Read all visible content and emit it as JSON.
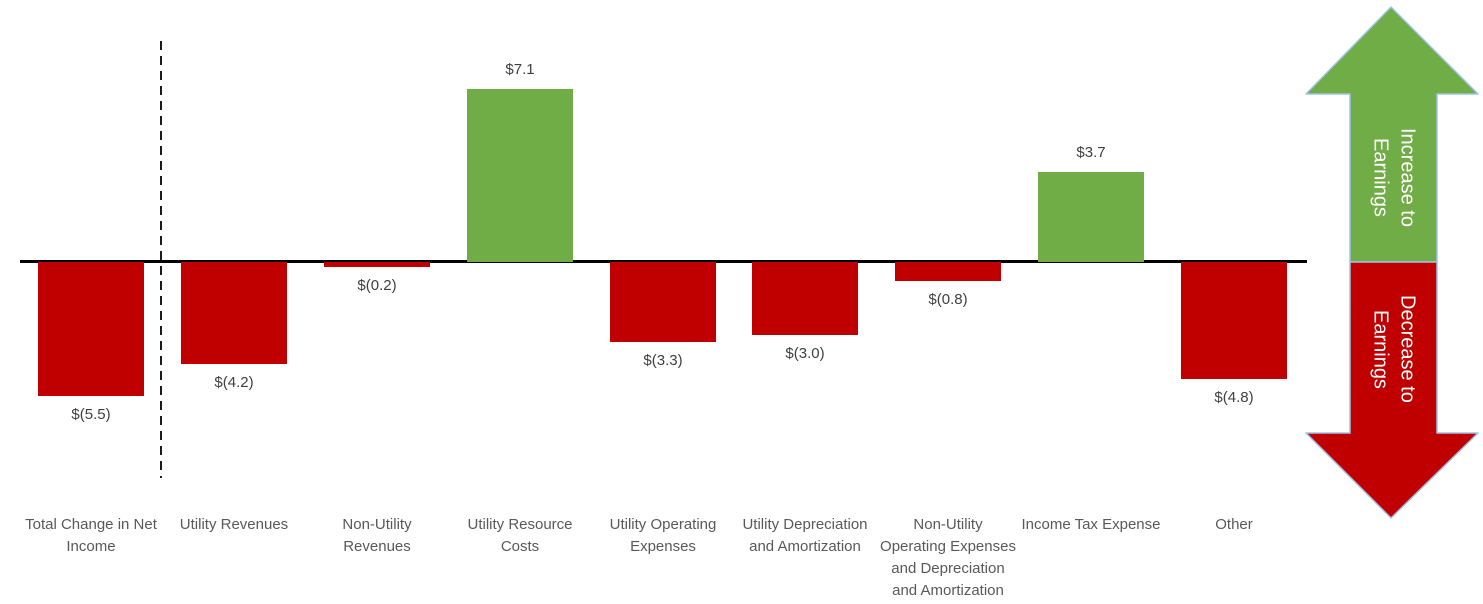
{
  "chart_data": {
    "type": "bar",
    "title": "",
    "xlabel": "",
    "ylabel": "",
    "categories": [
      "Total Change in Net Income",
      "Utility Revenues",
      "Non-Utility Revenues",
      "Utility Resource Costs",
      "Utility Operating Expenses",
      "Utility Depreciation and Amortization",
      "Non-Utility Operating Expenses and Depreciation and Amortization",
      "Income Tax Expense",
      "Other"
    ],
    "category_display": [
      "Total Change in Net\nIncome",
      "Utility Revenues",
      "Non-Utility\nRevenues",
      "Utility Resource\nCosts",
      "Utility Operating\nExpenses",
      "Utility Depreciation\nand Amortization",
      "Non-Utility\nOperating Expenses\nand Depreciation\nand Amortization",
      "Income Tax Expense",
      "Other"
    ],
    "values": [
      -5.5,
      -4.2,
      -0.2,
      7.1,
      -3.3,
      -3.0,
      -0.8,
      3.7,
      -4.8
    ],
    "value_labels": [
      "$(5.5)",
      "$(4.2)",
      "$(0.2)",
      "$7.1",
      "$(3.3)",
      "$(3.0)",
      "$(0.8)",
      "$3.7",
      "$(4.8)"
    ],
    "baseline": 0,
    "separator_after_index": 0,
    "positive_color": "#70AD47",
    "negative_color": "#C00000",
    "grid": false,
    "legend_position": "right-arrows"
  },
  "annotations": {
    "increase_label": "Increase to Earnings",
    "decrease_label": "Decrease to Earnings",
    "increase_color": "#70AD47",
    "decrease_color": "#C00000",
    "arrow_outline_color": "#9DC3E6"
  }
}
